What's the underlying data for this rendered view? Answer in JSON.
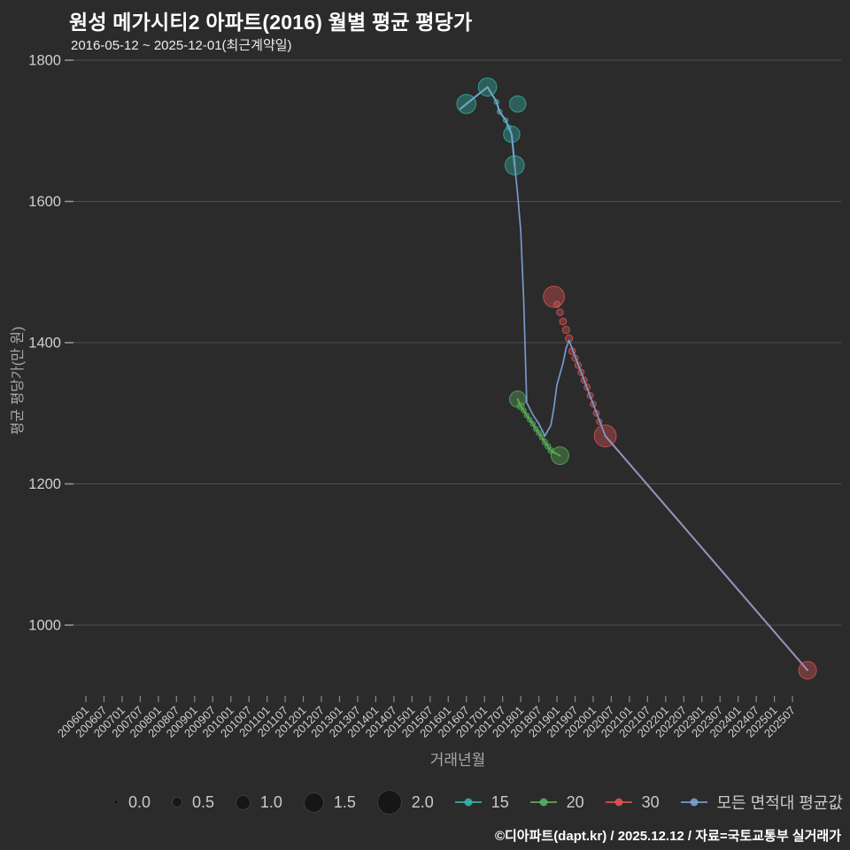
{
  "title": "원성 메가시티2 아파트(2016) 월별 평균 평당가",
  "subtitle": "2016-05-12 ~ 2025-12-01(최근계약일)",
  "footer": "©디아파트(dapt.kr) / 2025.12.12 / 자료=국토교통부 실거래가",
  "colors": {
    "background": "#2b2b2b",
    "grid": "#4f4f4f",
    "tick_mark": "#9a9a9a",
    "tick_text": "#cfcfcf",
    "axis_title": "#a9a9a9",
    "title_text": "#ffffff",
    "series_15": "#35b3a7",
    "series_20": "#58b158",
    "series_30": "#dd5454",
    "series_avg": "#7b9fd4",
    "size_dot": "#161616"
  },
  "size_legend": [
    {
      "label": "0.0",
      "size": 0.0
    },
    {
      "label": "0.5",
      "size": 0.5
    },
    {
      "label": "1.0",
      "size": 1.0
    },
    {
      "label": "1.5",
      "size": 1.5
    },
    {
      "label": "2.0",
      "size": 2.0
    }
  ],
  "chart_data": {
    "type": "scatter",
    "title": "원성 메가시티2 아파트(2016) 월별 평균 평당가",
    "subtitle": "2016-05-12 ~ 2025-12-01(최근계약일)",
    "xlabel": "거래년월",
    "ylabel": "평균 평당가(만 원)",
    "grid": "horizontal",
    "legend_position": "bottom",
    "y_ticks": [
      1800,
      1600,
      1400,
      1200,
      1000
    ],
    "ylim": [
      900,
      1810
    ],
    "xlim": [
      "200601",
      "202512"
    ],
    "bubble_size_range": [
      0.0,
      2.0
    ],
    "x_ticks": [
      "200601",
      "200607",
      "200701",
      "200707",
      "200801",
      "200807",
      "200901",
      "200907",
      "201001",
      "201007",
      "201101",
      "201107",
      "201201",
      "201207",
      "201301",
      "201307",
      "201401",
      "201407",
      "201501",
      "201507",
      "201601",
      "201607",
      "201701",
      "201707",
      "201801",
      "201807",
      "201901",
      "201907",
      "202001",
      "202007",
      "202101",
      "202107",
      "202201",
      "202207",
      "202301",
      "202307",
      "202401",
      "202407",
      "202501",
      "202507"
    ],
    "series": [
      {
        "name": "15",
        "color_key": "series_15",
        "draw_line": "all",
        "line_width": 2.2,
        "points": [
          [
            201605,
            1731,
            null
          ],
          [
            201607,
            1738,
            1.6
          ],
          [
            201702,
            1762,
            1.5
          ],
          [
            201705,
            1741,
            0.12
          ],
          [
            201706,
            1727,
            0.12
          ],
          [
            201708,
            1715,
            0.12
          ],
          [
            201709,
            1705,
            0.12
          ],
          [
            201710,
            1695,
            1.3
          ],
          [
            201711,
            1651,
            1.6
          ]
        ],
        "extra_points": [
          [
            201712,
            1738,
            1.3
          ]
        ]
      },
      {
        "name": "20",
        "color_key": "series_20",
        "draw_line": "all",
        "line_width": 2.0,
        "points": [
          [
            201712,
            1320,
            1.3
          ],
          [
            201801,
            1310,
            0.35
          ],
          [
            201802,
            1304,
            0.15
          ],
          [
            201803,
            1297,
            0.15
          ],
          [
            201804,
            1291,
            0.15
          ],
          [
            201805,
            1285,
            0.15
          ],
          [
            201806,
            1278,
            0.15
          ],
          [
            201807,
            1272,
            0.15
          ],
          [
            201808,
            1266,
            0.18
          ],
          [
            201809,
            1259,
            0.2
          ],
          [
            201810,
            1253,
            0.2
          ],
          [
            201811,
            1247,
            0.22
          ],
          [
            201902,
            1240,
            1.45
          ]
        ]
      },
      {
        "name": "30",
        "color_key": "series_30",
        "draw_line": "partial",
        "line_from": 16,
        "line_width": 2.2,
        "points": [
          [
            201812,
            1465,
            1.8
          ],
          [
            201901,
            1454,
            0.3
          ],
          [
            201902,
            1443,
            0.33
          ],
          [
            201903,
            1430,
            0.35
          ],
          [
            201904,
            1418,
            0.38
          ],
          [
            201905,
            1406,
            0.38
          ],
          [
            201906,
            1388,
            0.33
          ],
          [
            201907,
            1378,
            0.3
          ],
          [
            201908,
            1368,
            0.3
          ],
          [
            201909,
            1358,
            0.28
          ],
          [
            201910,
            1347,
            0.28
          ],
          [
            201911,
            1337,
            0.28
          ],
          [
            201912,
            1325,
            0.28
          ],
          [
            202001,
            1313,
            0.25
          ],
          [
            202002,
            1300,
            0.25
          ],
          [
            202003,
            1288,
            0.22
          ],
          [
            202005,
            1268,
            1.9
          ],
          [
            202512,
            936,
            1.45
          ]
        ]
      },
      {
        "name": "모든 면적대 평균값",
        "color_key": "series_avg",
        "draw_line": "all",
        "line_width": 1.7,
        "line_opacity": 0.95,
        "points": [
          [
            201605,
            1731,
            null
          ],
          [
            201607,
            1738,
            null
          ],
          [
            201702,
            1762,
            null
          ],
          [
            201705,
            1741,
            null
          ],
          [
            201706,
            1727,
            null
          ],
          [
            201708,
            1715,
            null
          ],
          [
            201709,
            1705,
            null
          ],
          [
            201710,
            1695,
            null
          ],
          [
            201711,
            1651,
            null
          ],
          [
            201712,
            1609,
            null
          ],
          [
            201801,
            1559,
            null
          ],
          [
            201802,
            1459,
            null
          ],
          [
            201803,
            1315,
            null
          ],
          [
            201805,
            1298,
            null
          ],
          [
            201807,
            1285,
            null
          ],
          [
            201809,
            1268,
            null
          ],
          [
            201811,
            1283,
            null
          ],
          [
            201812,
            1308,
            null
          ],
          [
            201901,
            1340,
            null
          ],
          [
            201903,
            1371,
            null
          ],
          [
            201904,
            1392,
            null
          ],
          [
            201905,
            1403,
            null
          ],
          [
            202005,
            1268,
            null
          ],
          [
            202512,
            936,
            null
          ]
        ]
      }
    ]
  }
}
